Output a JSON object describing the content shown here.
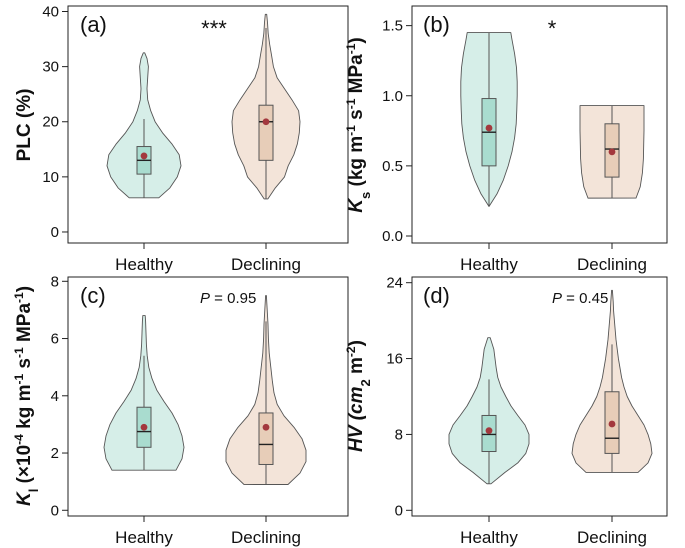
{
  "colors": {
    "healthy_fill": "#d6eee8",
    "healthy_box": "#a9dccf",
    "declining_fill": "#f3e4d9",
    "declining_box": "#e7cdb8",
    "outline": "#555555",
    "mean_dot": "#a3383d"
  },
  "chart_data": [
    {
      "type": "violin",
      "panel_label": "(a)",
      "annotation": "***",
      "ylabel": "PLC (%)",
      "ylim": [
        -2,
        41
      ],
      "yticks": [
        "0",
        "10",
        "20",
        "30",
        "40"
      ],
      "categories": [
        "Healthy",
        "Declining"
      ],
      "groups": [
        {
          "name": "Healthy",
          "min": 6.2,
          "q1": 10.5,
          "median": 13.0,
          "q3": 15.5,
          "max": 32.5,
          "whisker_low": 6.2,
          "whisker_high": 20.5,
          "mean": 13.8,
          "density": [
            [
              6.2,
              0.4
            ],
            [
              8,
              0.7
            ],
            [
              10,
              0.9
            ],
            [
              12,
              1.0
            ],
            [
              14,
              0.95
            ],
            [
              16,
              0.75
            ],
            [
              18,
              0.5
            ],
            [
              20,
              0.3
            ],
            [
              22,
              0.18
            ],
            [
              24,
              0.1
            ],
            [
              26,
              0.08
            ],
            [
              28,
              0.1
            ],
            [
              30,
              0.12
            ],
            [
              31.5,
              0.08
            ],
            [
              32.5,
              0.02
            ]
          ]
        },
        {
          "name": "Declining",
          "min": 6.0,
          "q1": 13.0,
          "median": 20.0,
          "q3": 23.0,
          "max": 39.5,
          "whisker_low": 6.0,
          "whisker_high": 37.0,
          "mean": 20.0,
          "density": [
            [
              6,
              0.05
            ],
            [
              8,
              0.25
            ],
            [
              10,
              0.5
            ],
            [
              12,
              0.6
            ],
            [
              14,
              0.75
            ],
            [
              16,
              0.85
            ],
            [
              18,
              0.9
            ],
            [
              20,
              0.92
            ],
            [
              22,
              0.88
            ],
            [
              24,
              0.7
            ],
            [
              26,
              0.5
            ],
            [
              28,
              0.3
            ],
            [
              30,
              0.2
            ],
            [
              32,
              0.15
            ],
            [
              34,
              0.1
            ],
            [
              36,
              0.06
            ],
            [
              38,
              0.04
            ],
            [
              39.5,
              0.02
            ]
          ]
        }
      ]
    },
    {
      "type": "violin",
      "panel_label": "(b)",
      "annotation": "*",
      "ylabel_parts": [
        "K",
        "s",
        " (kg m",
        "-1",
        " s",
        "-1",
        " MPa",
        "-1",
        ")"
      ],
      "ylim": [
        -0.05,
        1.64
      ],
      "yticks": [
        "0.0",
        "0.5",
        "1.0",
        "1.5"
      ],
      "categories": [
        "Healthy",
        "Declining"
      ],
      "groups": [
        {
          "name": "Healthy",
          "min": 0.21,
          "q1": 0.5,
          "median": 0.74,
          "q3": 0.98,
          "max": 1.45,
          "whisker_low": 0.21,
          "whisker_high": 1.45,
          "mean": 0.77,
          "density": [
            [
              0.21,
              0.0
            ],
            [
              0.3,
              0.25
            ],
            [
              0.4,
              0.45
            ],
            [
              0.5,
              0.6
            ],
            [
              0.6,
              0.72
            ],
            [
              0.7,
              0.8
            ],
            [
              0.8,
              0.85
            ],
            [
              0.9,
              0.87
            ],
            [
              1.0,
              0.88
            ],
            [
              1.1,
              0.88
            ],
            [
              1.2,
              0.86
            ],
            [
              1.3,
              0.8
            ],
            [
              1.4,
              0.72
            ],
            [
              1.45,
              0.68
            ]
          ]
        },
        {
          "name": "Declining",
          "min": 0.27,
          "q1": 0.42,
          "median": 0.62,
          "q3": 0.8,
          "max": 0.93,
          "whisker_low": 0.27,
          "whisker_high": 0.93,
          "mean": 0.6,
          "density": [
            [
              0.27,
              0.75
            ],
            [
              0.35,
              0.88
            ],
            [
              0.45,
              0.95
            ],
            [
              0.55,
              0.98
            ],
            [
              0.65,
              0.99
            ],
            [
              0.75,
              1.0
            ],
            [
              0.85,
              1.0
            ],
            [
              0.93,
              1.0
            ]
          ]
        }
      ]
    },
    {
      "type": "violin",
      "panel_label": "(c)",
      "annotation_italic": "P",
      "annotation": " = 0.95",
      "ylabel_parts": [
        "K",
        "l",
        " (×10",
        "-4",
        " kg m",
        "-1",
        " s",
        "-1",
        " MPa",
        "-1",
        ")"
      ],
      "ylim": [
        -0.2,
        8.15
      ],
      "yticks": [
        "0",
        "2",
        "4",
        "6",
        "8"
      ],
      "categories": [
        "Healthy",
        "Declining"
      ],
      "groups": [
        {
          "name": "Healthy",
          "min": 1.4,
          "q1": 2.2,
          "median": 2.75,
          "q3": 3.6,
          "max": 6.8,
          "whisker_low": 1.4,
          "whisker_high": 5.4,
          "mean": 2.9,
          "density": [
            [
              1.4,
              0.8
            ],
            [
              1.8,
              0.95
            ],
            [
              2.2,
              1.0
            ],
            [
              2.6,
              0.95
            ],
            [
              3.0,
              0.85
            ],
            [
              3.4,
              0.7
            ],
            [
              3.8,
              0.5
            ],
            [
              4.2,
              0.32
            ],
            [
              4.6,
              0.2
            ],
            [
              5.0,
              0.12
            ],
            [
              5.4,
              0.08
            ],
            [
              5.8,
              0.06
            ],
            [
              6.2,
              0.05
            ],
            [
              6.6,
              0.04
            ],
            [
              6.8,
              0.03
            ]
          ]
        },
        {
          "name": "Declining",
          "min": 0.9,
          "q1": 1.6,
          "median": 2.3,
          "q3": 3.4,
          "max": 7.5,
          "whisker_low": 0.9,
          "whisker_high": 6.6,
          "mean": 2.9,
          "density": [
            [
              0.9,
              0.55
            ],
            [
              1.3,
              0.85
            ],
            [
              1.7,
              1.0
            ],
            [
              2.1,
              1.0
            ],
            [
              2.5,
              0.9
            ],
            [
              2.9,
              0.7
            ],
            [
              3.3,
              0.45
            ],
            [
              3.7,
              0.28
            ],
            [
              4.1,
              0.2
            ],
            [
              4.5,
              0.16
            ],
            [
              5.0,
              0.12
            ],
            [
              5.5,
              0.08
            ],
            [
              6.0,
              0.06
            ],
            [
              6.5,
              0.05
            ],
            [
              7.0,
              0.03
            ],
            [
              7.5,
              0.01
            ]
          ]
        }
      ]
    },
    {
      "type": "violin",
      "panel_label": "(d)",
      "annotation_italic": "P",
      "annotation": " = 0.45",
      "ylabel_parts": [
        "HV (cm",
        "2",
        " m",
        "-2",
        ")"
      ],
      "ylim": [
        -0.6,
        24.6
      ],
      "yticks": [
        "0",
        "8",
        "16",
        "24"
      ],
      "categories": [
        "Healthy",
        "Declining"
      ],
      "groups": [
        {
          "name": "Healthy",
          "min": 2.8,
          "q1": 6.2,
          "median": 8.0,
          "q3": 10.0,
          "max": 18.2,
          "whisker_low": 2.8,
          "whisker_high": 13.8,
          "mean": 8.4,
          "density": [
            [
              2.8,
              0.05
            ],
            [
              4,
              0.4
            ],
            [
              5,
              0.72
            ],
            [
              6,
              0.92
            ],
            [
              7,
              1.0
            ],
            [
              8,
              1.0
            ],
            [
              9,
              0.9
            ],
            [
              10,
              0.72
            ],
            [
              11,
              0.55
            ],
            [
              12,
              0.42
            ],
            [
              13,
              0.3
            ],
            [
              14,
              0.22
            ],
            [
              15,
              0.18
            ],
            [
              16,
              0.15
            ],
            [
              17,
              0.12
            ],
            [
              18.2,
              0.03
            ]
          ]
        },
        {
          "name": "Declining",
          "min": 4.0,
          "q1": 6.0,
          "median": 7.6,
          "q3": 12.5,
          "max": 23.2,
          "whisker_low": 4.0,
          "whisker_high": 17.5,
          "mean": 9.1,
          "density": [
            [
              4,
              0.65
            ],
            [
              5,
              0.9
            ],
            [
              6,
              1.0
            ],
            [
              7,
              0.97
            ],
            [
              8,
              0.9
            ],
            [
              9,
              0.8
            ],
            [
              10,
              0.65
            ],
            [
              11,
              0.5
            ],
            [
              12,
              0.38
            ],
            [
              13,
              0.3
            ],
            [
              14,
              0.24
            ],
            [
              15,
              0.2
            ],
            [
              16,
              0.16
            ],
            [
              17,
              0.13
            ],
            [
              18,
              0.1
            ],
            [
              19,
              0.08
            ],
            [
              20,
              0.06
            ],
            [
              21,
              0.04
            ],
            [
              22,
              0.03
            ],
            [
              23.2,
              0.01
            ]
          ]
        }
      ]
    }
  ]
}
